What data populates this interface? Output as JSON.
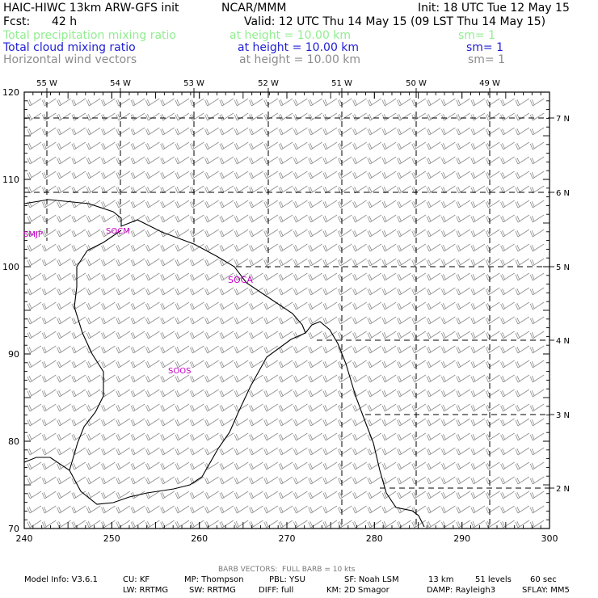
{
  "header": {
    "model_title": "HAIC-HIWC 13km ARW-GFS init",
    "org": "NCAR/MMM",
    "init": "Init: 18 UTC Tue 12 May 15",
    "fcst_label": "Fcst:",
    "fcst_value": "42 h",
    "valid": "Valid: 12 UTC Thu 14 May 15 (09 LST Thu 14 May 15)",
    "fields": [
      {
        "name": "Total precipitation mixing ratio",
        "height": "at height = 10.00 km",
        "sm": "sm= 1",
        "color": "#90ee90"
      },
      {
        "name": "Total cloud mixing ratio",
        "height": "at height = 10.00 km",
        "sm": "sm= 1",
        "color": "#1e1ed2"
      },
      {
        "name": "Horizontal wind vectors",
        "height": "at height = 10.00 km",
        "sm": "sm= 1",
        "color": "#8c8c8c"
      }
    ]
  },
  "map": {
    "x_ticks": [
      "240",
      "250",
      "260",
      "270",
      "280",
      "290",
      "300"
    ],
    "y_ticks": [
      "70",
      "80",
      "90",
      "100",
      "110",
      "120"
    ],
    "lon_labels": [
      "55 W",
      "54 W",
      "53 W",
      "52 W",
      "51 W",
      "50 W",
      "49 W"
    ],
    "lat_labels": [
      "7 N",
      "6 N",
      "5 N",
      "4 N",
      "3 N",
      "2 N"
    ],
    "stations": [
      "SMJP",
      "SOCM",
      "SOCA",
      "SOOS"
    ],
    "station_color": "#c800c8",
    "barb_color": "#8c8c8c",
    "barb_speed_kts": 10
  },
  "footer": {
    "barb_note": "BARB VECTORS:  FULL BARB = 10 kts",
    "line1": [
      "Model Info: V3.6.1",
      "CU: KF",
      "MP: Thompson",
      "PBL: YSU",
      "SF: Noah LSM",
      "13 km",
      "51 levels",
      "60 sec"
    ],
    "line2": [
      "LW: RRTMG",
      "SW: RRTMG",
      "DIFF: full",
      "KM: 2D Smagor",
      "DAMP: Rayleigh3",
      "SFLAY: MM5"
    ]
  }
}
